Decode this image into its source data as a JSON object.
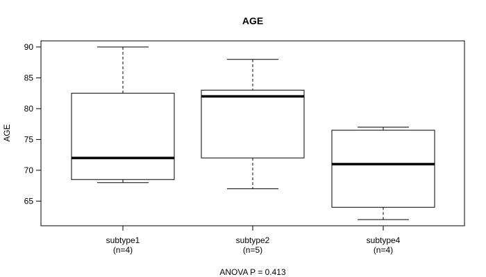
{
  "chart_data": {
    "type": "box",
    "title": "AGE",
    "ylabel": "AGE",
    "xlabel": "",
    "footer": "ANOVA P = 0.413",
    "ylim": [
      61,
      91
    ],
    "yticks": [
      65,
      70,
      75,
      80,
      85,
      90
    ],
    "categories": [
      "subtype1",
      "subtype2",
      "subtype4"
    ],
    "counts": [
      "(n=4)",
      "(n=5)",
      "(n=4)"
    ],
    "boxes": [
      {
        "whisker_low": 68,
        "q1": 68.5,
        "median": 72,
        "q3": 82.5,
        "whisker_high": 90
      },
      {
        "whisker_low": 67,
        "q1": 72,
        "median": 82,
        "q3": 83,
        "whisker_high": 88
      },
      {
        "whisker_low": 62,
        "q1": 64,
        "median": 71,
        "q3": 76.5,
        "whisker_high": 77
      }
    ]
  }
}
